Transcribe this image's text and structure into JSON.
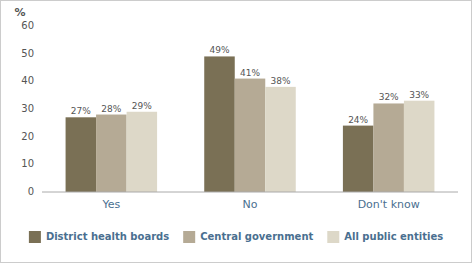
{
  "chart_data": {
    "type": "bar",
    "ylabel": "%",
    "categories": [
      "Yes",
      "No",
      "Don't know"
    ],
    "series": [
      {
        "name": "District health boards",
        "color": "#7a7055",
        "values": [
          27,
          49,
          24
        ],
        "value_labels": [
          "27%",
          "49%",
          "24%"
        ]
      },
      {
        "name": "Central government",
        "color": "#b5aa95",
        "values": [
          28,
          41,
          32
        ],
        "value_labels": [
          "28%",
          "41%",
          "32%"
        ]
      },
      {
        "name": "All public entities",
        "color": "#ddd8c8",
        "values": [
          29,
          38,
          33
        ],
        "value_labels": [
          "29%",
          "38%",
          "33%"
        ]
      }
    ],
    "ylim": [
      0,
      60
    ],
    "yticks": [
      0,
      10,
      20,
      30,
      40,
      50,
      60
    ],
    "grid": false,
    "legend": "bottom",
    "data_labels": true
  }
}
